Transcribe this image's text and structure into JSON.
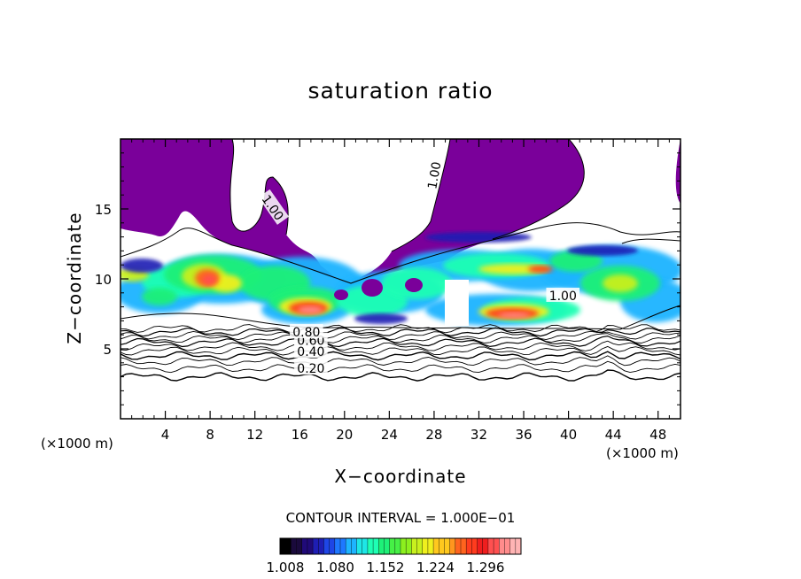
{
  "chart_data": {
    "type": "heatmap",
    "title": "saturation ratio",
    "xlabel": "X−coordinate",
    "ylabel": "Z−coordinate",
    "x_unit": "(×1000 m)",
    "y_unit": "(×1000 m)",
    "xlim": [
      0,
      50
    ],
    "ylim": [
      0,
      20
    ],
    "x_ticks": [
      4,
      8,
      12,
      16,
      20,
      24,
      28,
      32,
      36,
      40,
      44,
      48
    ],
    "y_ticks": [
      5,
      10,
      15
    ],
    "contour_interval_label": "CONTOUR INTERVAL = 1.000E−01",
    "contour_labels": [
      {
        "text": "0.20",
        "x": 17.0,
        "y": 3.6
      },
      {
        "text": "0.40",
        "x": 17.0,
        "y": 4.8
      },
      {
        "text": "0.60",
        "x": 17.0,
        "y": 5.6
      },
      {
        "text": "0.80",
        "x": 16.6,
        "y": 6.2
      },
      {
        "text": "1.00",
        "x": 13.6,
        "y": 15.1
      },
      {
        "text": "1.00",
        "x": 28.0,
        "y": 17.4
      },
      {
        "text": "1.00",
        "x": 39.5,
        "y": 8.8
      }
    ],
    "colorbar": {
      "range": [
        1.008,
        1.296
      ],
      "tick_labels": [
        "1.008",
        "1.080",
        "1.152",
        "1.224",
        "1.296"
      ],
      "colors": [
        "#000000",
        "#1a0a3c",
        "#200a78",
        "#1e1eb4",
        "#1e46e6",
        "#1e78ff",
        "#1eb4ff",
        "#1ee6e6",
        "#1effb4",
        "#1ef078",
        "#46f046",
        "#8cf01e",
        "#c8f01e",
        "#f0f01e",
        "#ffc81e",
        "#ff961e",
        "#ff641e",
        "#ff3c1e",
        "#f01e1e",
        "#ff5050",
        "#ff8c8c",
        "#ffb4b4"
      ]
    },
    "legend": {
      "dry_region": "#7a009a"
    }
  }
}
